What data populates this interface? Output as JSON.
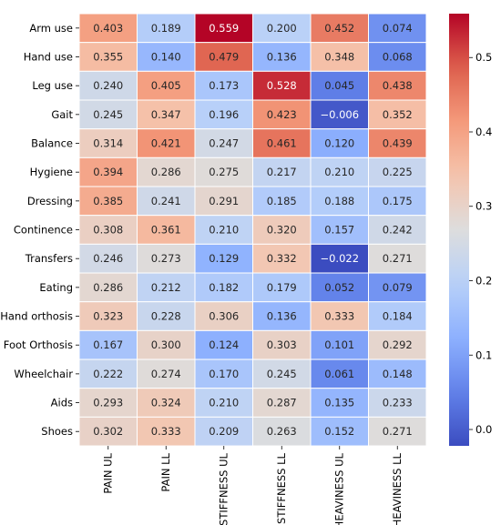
{
  "chart_data": {
    "type": "heatmap",
    "rows": [
      "Arm use",
      "Hand use",
      "Leg use",
      "Gait",
      "Balance",
      "Hygiene",
      "Dressing",
      "Continence",
      "Transfers",
      "Eating",
      "Hand orthosis",
      "Foot Orthosis",
      "Wheelchair",
      "Aids",
      "Shoes"
    ],
    "columns": [
      "PAIN UL",
      "PAIN LL",
      "STIFFNESS UL",
      "STIFFNESS LL",
      "HEAVINESS UL",
      "HEAVINESS LL"
    ],
    "values": [
      [
        0.403,
        0.189,
        0.559,
        0.2,
        0.452,
        0.074
      ],
      [
        0.355,
        0.14,
        0.479,
        0.136,
        0.348,
        0.068
      ],
      [
        0.24,
        0.405,
        0.173,
        0.528,
        0.045,
        0.438
      ],
      [
        0.245,
        0.347,
        0.196,
        0.423,
        -0.006,
        0.352
      ],
      [
        0.314,
        0.421,
        0.247,
        0.461,
        0.12,
        0.439
      ],
      [
        0.394,
        0.286,
        0.275,
        0.217,
        0.21,
        0.225
      ],
      [
        0.385,
        0.241,
        0.291,
        0.185,
        0.188,
        0.175
      ],
      [
        0.308,
        0.361,
        0.21,
        0.32,
        0.157,
        0.242
      ],
      [
        0.246,
        0.273,
        0.129,
        0.332,
        -0.022,
        0.271
      ],
      [
        0.286,
        0.212,
        0.182,
        0.179,
        0.052,
        0.079
      ],
      [
        0.323,
        0.228,
        0.306,
        0.136,
        0.333,
        0.184
      ],
      [
        0.167,
        0.3,
        0.124,
        0.303,
        0.101,
        0.292
      ],
      [
        0.222,
        0.274,
        0.17,
        0.245,
        0.061,
        0.148
      ],
      [
        0.293,
        0.324,
        0.21,
        0.287,
        0.135,
        0.233
      ],
      [
        0.302,
        0.333,
        0.209,
        0.263,
        0.152,
        0.271
      ]
    ],
    "value_labels": [
      [
        "0.403",
        "0.189",
        "0.559",
        "0.200",
        "0.452",
        "0.074"
      ],
      [
        "0.355",
        "0.140",
        "0.479",
        "0.136",
        "0.348",
        "0.068"
      ],
      [
        "0.240",
        "0.405",
        "0.173",
        "0.528",
        "0.045",
        "0.438"
      ],
      [
        "0.245",
        "0.347",
        "0.196",
        "0.423",
        "−0.006",
        "0.352"
      ],
      [
        "0.314",
        "0.421",
        "0.247",
        "0.461",
        "0.120",
        "0.439"
      ],
      [
        "0.394",
        "0.286",
        "0.275",
        "0.217",
        "0.210",
        "0.225"
      ],
      [
        "0.385",
        "0.241",
        "0.291",
        "0.185",
        "0.188",
        "0.175"
      ],
      [
        "0.308",
        "0.361",
        "0.210",
        "0.320",
        "0.157",
        "0.242"
      ],
      [
        "0.246",
        "0.273",
        "0.129",
        "0.332",
        "−0.022",
        "0.271"
      ],
      [
        "0.286",
        "0.212",
        "0.182",
        "0.179",
        "0.052",
        "0.079"
      ],
      [
        "0.323",
        "0.228",
        "0.306",
        "0.136",
        "0.333",
        "0.184"
      ],
      [
        "0.167",
        "0.300",
        "0.124",
        "0.303",
        "0.101",
        "0.292"
      ],
      [
        "0.222",
        "0.274",
        "0.170",
        "0.245",
        "0.061",
        "0.148"
      ],
      [
        "0.293",
        "0.324",
        "0.210",
        "0.287",
        "0.135",
        "0.233"
      ],
      [
        "0.302",
        "0.333",
        "0.209",
        "0.263",
        "0.152",
        "0.271"
      ]
    ],
    "colormap": "coolwarm",
    "color_range": [
      -0.022,
      0.559
    ],
    "colorbar_ticks": [
      0.0,
      0.1,
      0.2,
      0.3,
      0.4,
      0.5
    ],
    "colorbar_tick_labels": [
      "0.0",
      "0.1",
      "0.2",
      "0.3",
      "0.4",
      "0.5"
    ],
    "title": "",
    "xlabel": "",
    "ylabel": ""
  }
}
